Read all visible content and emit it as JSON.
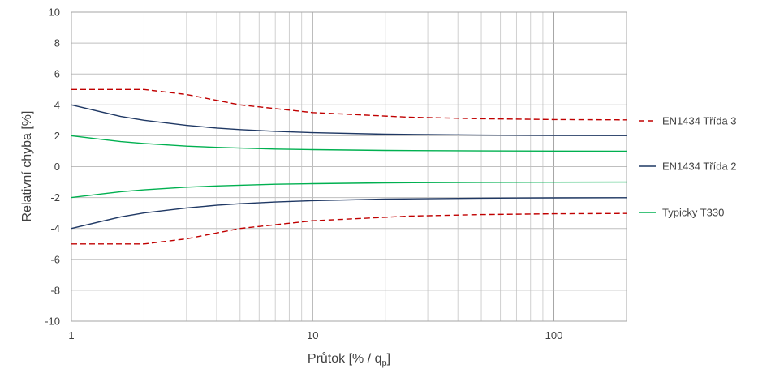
{
  "chart_data": {
    "type": "line",
    "xlabel": "Průtok [% / q",
    "xlabel_sub": "p",
    "xlabel_suffix": "]",
    "ylabel": "Relativní chyba [%]",
    "xscale": "log",
    "xlim": [
      1,
      200
    ],
    "ylim": [
      -10,
      10
    ],
    "yticks": [
      10,
      8,
      6,
      4,
      2,
      0,
      -2,
      -4,
      -6,
      -8,
      -10
    ],
    "xticks": [
      1,
      10,
      100
    ],
    "grid": true,
    "legend_position": "right",
    "series": [
      {
        "name": "EN1434 Třída 3",
        "color": "#C00000",
        "style": "dashed",
        "upper": {
          "x": [
            1,
            2,
            3,
            5,
            10,
            25,
            50,
            100,
            200
          ],
          "y": [
            5,
            5,
            4.67,
            4.0,
            3.5,
            3.2,
            3.1,
            3.05,
            3.03
          ]
        },
        "lower": {
          "x": [
            1,
            2,
            3,
            5,
            10,
            25,
            50,
            100,
            200
          ],
          "y": [
            -5,
            -5,
            -4.67,
            -4.0,
            -3.5,
            -3.2,
            -3.1,
            -3.05,
            -3.03
          ]
        }
      },
      {
        "name": "EN1434 Třída 2",
        "color": "#1F3864",
        "style": "solid",
        "upper": {
          "x": [
            1,
            1.6,
            2,
            3,
            4,
            5,
            7,
            10,
            20,
            50,
            100,
            200
          ],
          "y": [
            4.0,
            3.25,
            3.0,
            2.67,
            2.5,
            2.4,
            2.29,
            2.2,
            2.1,
            2.04,
            2.02,
            2.01
          ]
        },
        "lower": {
          "x": [
            1,
            1.6,
            2,
            3,
            4,
            5,
            7,
            10,
            20,
            50,
            100,
            200
          ],
          "y": [
            -4.0,
            -3.25,
            -3.0,
            -2.67,
            -2.5,
            -2.4,
            -2.29,
            -2.2,
            -2.1,
            -2.04,
            -2.02,
            -2.01
          ]
        }
      },
      {
        "name": "Typicky T330",
        "color": "#00B050",
        "style": "solid",
        "upper": {
          "x": [
            1,
            1.6,
            2,
            3,
            4,
            5,
            7,
            10,
            20,
            50,
            100,
            200
          ],
          "y": [
            2.0,
            1.62,
            1.5,
            1.33,
            1.25,
            1.2,
            1.14,
            1.1,
            1.05,
            1.02,
            1.01,
            1.0
          ]
        },
        "lower": {
          "x": [
            1,
            1.6,
            2,
            3,
            4,
            5,
            7,
            10,
            20,
            50,
            100,
            200
          ],
          "y": [
            -2.0,
            -1.62,
            -1.5,
            -1.33,
            -1.25,
            -1.2,
            -1.14,
            -1.1,
            -1.05,
            -1.02,
            -1.01,
            -1.0
          ]
        }
      }
    ]
  }
}
